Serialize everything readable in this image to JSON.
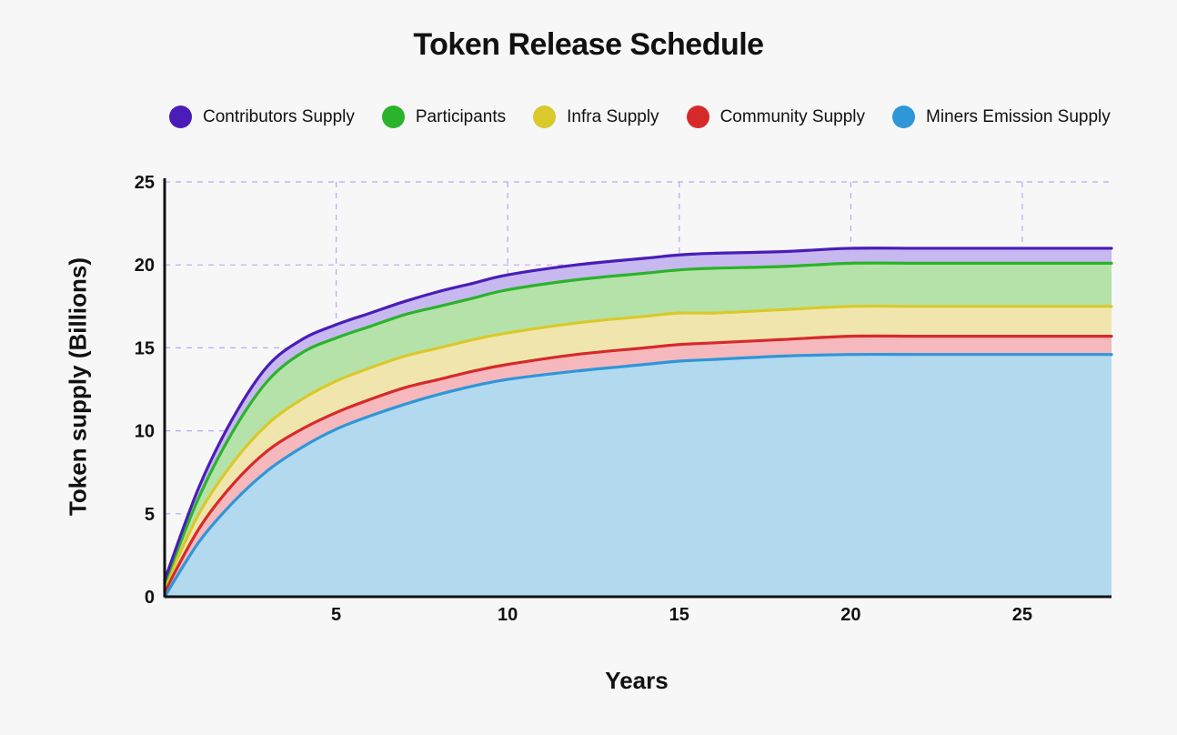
{
  "chart_data": {
    "type": "area",
    "title": "Token Release Schedule",
    "xlabel": "Years",
    "ylabel": "Token supply (Billions)",
    "xlim": [
      0,
      27.6
    ],
    "ylim": [
      0,
      25
    ],
    "x_ticks": [
      5,
      10,
      15,
      20,
      25
    ],
    "y_ticks": [
      0,
      5,
      10,
      15,
      20,
      25
    ],
    "grid": true,
    "stacked": true,
    "legend_position": "top",
    "x": [
      0,
      1,
      2,
      3,
      4,
      5,
      6,
      7,
      8,
      9,
      10,
      12,
      14,
      15,
      16,
      18,
      20,
      22,
      24,
      26,
      27.6
    ],
    "series": [
      {
        "name": "Miners Emission Supply",
        "color": "#2f96d8",
        "values": [
          0,
          3.3,
          5.7,
          7.6,
          9.0,
          10.1,
          10.9,
          11.6,
          12.2,
          12.7,
          13.1,
          13.6,
          14.0,
          14.2,
          14.3,
          14.5,
          14.6,
          14.6,
          14.6,
          14.6,
          14.6
        ]
      },
      {
        "name": "Community Supply",
        "color": "#d62a2a",
        "values": [
          0.3,
          0.8,
          1.1,
          1.2,
          1.1,
          1.0,
          1.0,
          1.0,
          0.9,
          0.9,
          0.9,
          1.0,
          1.0,
          1.0,
          1.0,
          1.0,
          1.1,
          1.1,
          1.1,
          1.1,
          1.1
        ]
      },
      {
        "name": "Infra Supply",
        "color": "#d9c92a",
        "values": [
          0.3,
          0.9,
          1.3,
          1.6,
          1.8,
          1.9,
          1.9,
          1.9,
          1.9,
          1.9,
          1.9,
          1.9,
          1.9,
          1.9,
          1.8,
          1.8,
          1.8,
          1.8,
          1.8,
          1.8,
          1.8
        ]
      },
      {
        "name": "Participants",
        "color": "#2bb32b",
        "values": [
          0.2,
          1.0,
          1.9,
          2.6,
          2.8,
          2.6,
          2.5,
          2.5,
          2.5,
          2.5,
          2.6,
          2.6,
          2.6,
          2.6,
          2.7,
          2.6,
          2.6,
          2.6,
          2.6,
          2.6,
          2.6
        ]
      },
      {
        "name": "Contributors Supply",
        "color": "#4a1db8",
        "values": [
          0.2,
          0.6,
          0.8,
          0.9,
          0.8,
          0.8,
          0.8,
          0.8,
          0.9,
          0.9,
          0.9,
          0.9,
          0.9,
          0.9,
          0.9,
          0.9,
          0.9,
          0.9,
          0.9,
          0.9,
          0.9
        ]
      }
    ]
  }
}
